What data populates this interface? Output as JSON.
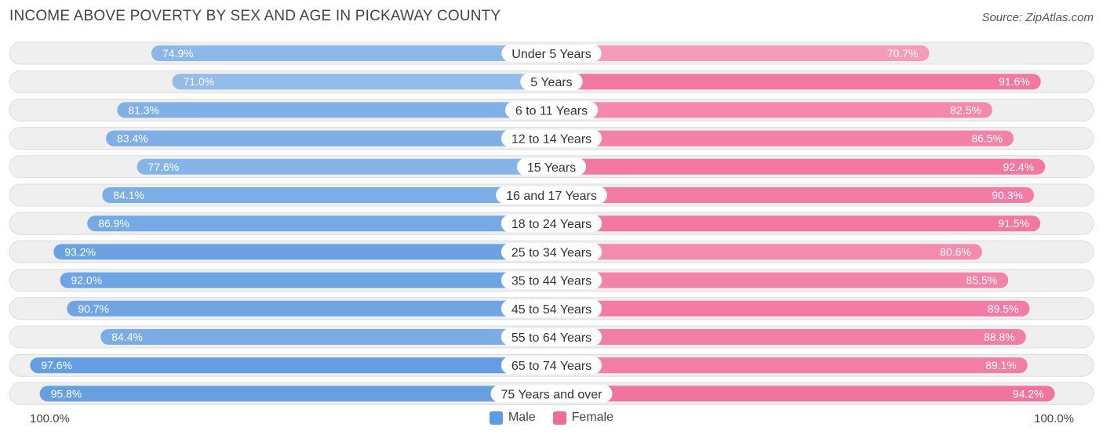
{
  "title": "INCOME ABOVE POVERTY BY SEX AND AGE IN PICKAWAY COUNTY",
  "source": "Source: ZipAtlas.com",
  "colors": {
    "male_light": "#a8c8ee",
    "male_dark": "#5e9be0",
    "female_light": "#f8aec8",
    "female_dark": "#f06a98",
    "track": "#efefef",
    "track_border": "#dcdcdc"
  },
  "chart_data": {
    "type": "bar",
    "orientation": "horizontal-diverging",
    "title": "INCOME ABOVE POVERTY BY SEX AND AGE IN PICKAWAY COUNTY",
    "categories": [
      "Under 5 Years",
      "5 Years",
      "6 to 11 Years",
      "12 to 14 Years",
      "15 Years",
      "16 and 17 Years",
      "18 to 24 Years",
      "25 to 34 Years",
      "35 to 44 Years",
      "45 to 54 Years",
      "55 to 64 Years",
      "65 to 74 Years",
      "75 Years and over"
    ],
    "series": [
      {
        "name": "Male",
        "values": [
          74.9,
          71.0,
          81.3,
          83.4,
          77.6,
          84.1,
          86.9,
          93.2,
          92.0,
          90.7,
          84.4,
          97.6,
          95.8
        ]
      },
      {
        "name": "Female",
        "values": [
          70.7,
          91.6,
          82.5,
          86.5,
          92.4,
          90.3,
          91.5,
          80.6,
          85.5,
          89.5,
          88.8,
          89.1,
          94.2
        ]
      }
    ],
    "value_labels": {
      "male": [
        "74.9%",
        "71.0%",
        "81.3%",
        "83.4%",
        "77.6%",
        "84.1%",
        "86.9%",
        "93.2%",
        "92.0%",
        "90.7%",
        "84.4%",
        "97.6%",
        "95.8%"
      ],
      "female": [
        "70.7%",
        "91.6%",
        "82.5%",
        "86.5%",
        "92.4%",
        "90.3%",
        "91.5%",
        "80.6%",
        "85.5%",
        "89.5%",
        "88.8%",
        "89.1%",
        "94.2%"
      ]
    },
    "xlim": [
      0,
      100
    ],
    "axis_left_label": "100.0%",
    "axis_right_label": "100.0%",
    "legend": [
      "Male",
      "Female"
    ],
    "legend_position": "bottom-center"
  }
}
